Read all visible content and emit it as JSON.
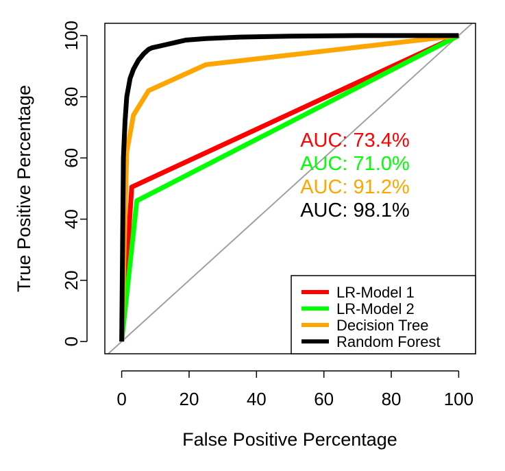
{
  "chart_data": {
    "type": "line",
    "xlabel": "False Positive Percentage",
    "ylabel": "True Positive Percentage",
    "xlim": [
      -5,
      105
    ],
    "ylim": [
      -4,
      104
    ],
    "xticks": [
      "0",
      "20",
      "40",
      "60",
      "80",
      "100"
    ],
    "yticks": [
      "0",
      "20",
      "40",
      "60",
      "80",
      "100"
    ],
    "xtick_values": [
      0,
      20,
      40,
      60,
      80,
      100
    ],
    "ytick_values": [
      0,
      20,
      40,
      60,
      80,
      100
    ],
    "diagonal": {
      "color": "#a0a0a0"
    },
    "legend_position": "bottom-right",
    "series": [
      {
        "name": "LR-Model 1",
        "color": "#ff0000",
        "auc_label": "AUC: 73.4%",
        "x": [
          0,
          3,
          100
        ],
        "y": [
          0,
          50.5,
          100
        ]
      },
      {
        "name": "LR-Model 2",
        "color": "#00ff00",
        "auc_label": "AUC: 71.0%",
        "x": [
          0,
          4.5,
          100
        ],
        "y": [
          0,
          46,
          100
        ]
      },
      {
        "name": "Decision Tree",
        "color": "#ffa500",
        "auc_label": "AUC: 91.2%",
        "x": [
          0,
          1.5,
          3.5,
          8,
          25,
          100
        ],
        "y": [
          0,
          62,
          74,
          82,
          90.5,
          100
        ]
      },
      {
        "name": "Random Forest",
        "color": "#000000",
        "auc_label": "AUC: 98.1%",
        "x": [
          0,
          0.5,
          1,
          1.5,
          2.5,
          3.5,
          5,
          6.5,
          8,
          9,
          11,
          15,
          19,
          25,
          35,
          50,
          70,
          100
        ],
        "y": [
          0,
          60,
          72,
          80,
          86,
          89,
          92,
          94,
          95.5,
          96,
          96.5,
          97.5,
          98.5,
          99,
          99.5,
          99.8,
          100,
          100
        ]
      }
    ]
  }
}
